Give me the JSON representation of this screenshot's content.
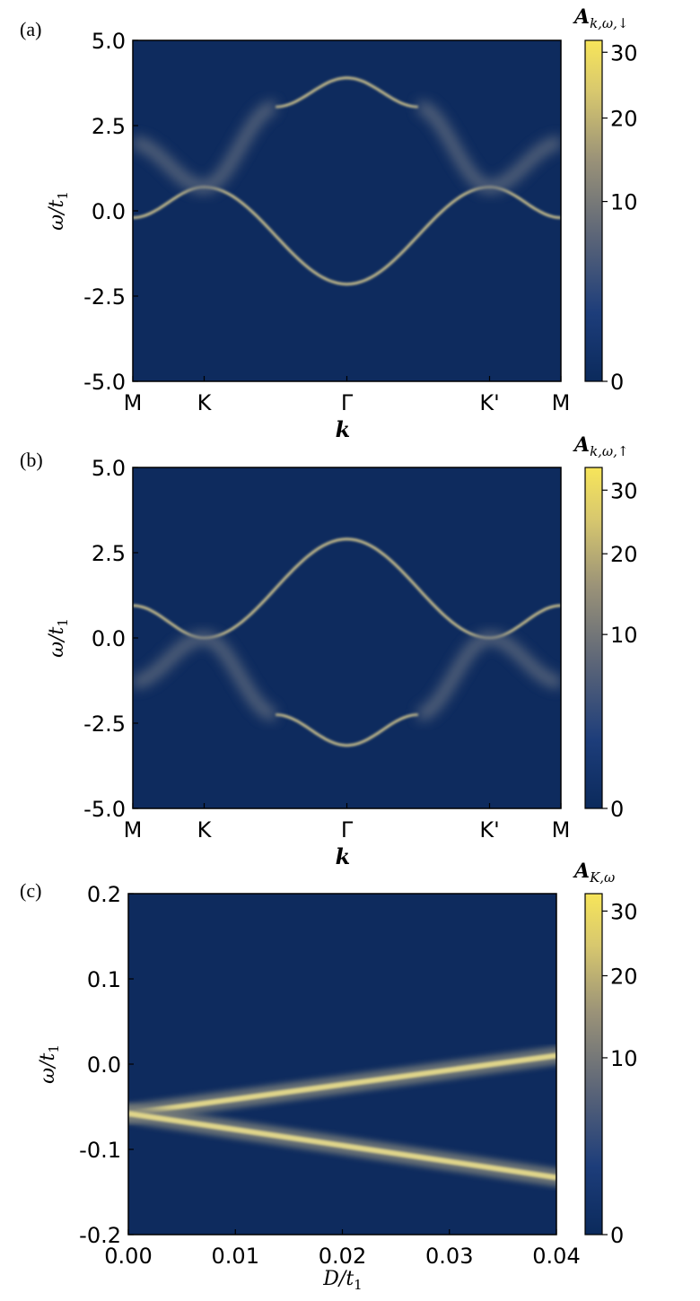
{
  "chart_data": [
    {
      "type": "heatmap",
      "panel_label": "(a)",
      "xlabel": "k",
      "ylabel_main": "ω/t",
      "ylabel_sub": "1",
      "colorbar_label_main": "A",
      "colorbar_label_sub": "k,ω,↓",
      "x_ticks": [
        "M",
        "K",
        "Γ",
        "K'",
        "M"
      ],
      "y_ticks": [
        "5.0",
        "2.5",
        "0.0",
        "-2.5",
        "-5.0"
      ],
      "ylim": [
        -5.0,
        5.0
      ],
      "colorbar_ticks": [
        "30",
        "20",
        "10",
        "0"
      ],
      "colorbar_range": [
        0,
        32
      ],
      "colormap": [
        "#0b2a5c",
        "#1d3d7a",
        "#5a6478",
        "#9a9278",
        "#d8c86e",
        "#f7e55a"
      ],
      "bands": [
        {
          "points": [
            [
              0,
              -0.2
            ],
            [
              0.5,
              0.7
            ],
            [
              1.5,
              -2.15
            ],
            [
              2.5,
              0.7
            ],
            [
              3,
              -0.2
            ]
          ],
          "shape": "cos"
        },
        {
          "points": [
            [
              1.0,
              3.05
            ],
            [
              1.5,
              3.9
            ],
            [
              2.0,
              3.05
            ]
          ],
          "shape": "cos"
        },
        {
          "points": [
            [
              0,
              2.0
            ],
            [
              0.5,
              0.7
            ],
            [
              1.0,
              3.05
            ]
          ],
          "shape": "blur"
        },
        {
          "points": [
            [
              2.0,
              3.05
            ],
            [
              2.5,
              0.7
            ],
            [
              3,
              2.0
            ]
          ],
          "shape": "blur"
        }
      ]
    },
    {
      "type": "heatmap",
      "panel_label": "(b)",
      "xlabel": "k",
      "ylabel_main": "ω/t",
      "ylabel_sub": "1",
      "colorbar_label_main": "A",
      "colorbar_label_sub": "k,ω,↑",
      "x_ticks": [
        "M",
        "K",
        "Γ",
        "K'",
        "M"
      ],
      "y_ticks": [
        "5.0",
        "2.5",
        "0.0",
        "-2.5",
        "-5.0"
      ],
      "ylim": [
        -5.0,
        5.0
      ],
      "colorbar_ticks": [
        "30",
        "20",
        "10",
        "0"
      ],
      "colorbar_range": [
        0,
        34
      ],
      "colormap": [
        "#0b2a5c",
        "#1d3d7a",
        "#5a6478",
        "#9a9278",
        "#d8c86e",
        "#f7e55a"
      ],
      "bands": [
        {
          "points": [
            [
              0,
              0.95
            ],
            [
              0.5,
              0.0
            ],
            [
              1.5,
              2.9
            ],
            [
              2.5,
              0.0
            ],
            [
              3,
              0.95
            ]
          ],
          "shape": "cos"
        },
        {
          "points": [
            [
              1.0,
              -2.25
            ],
            [
              1.5,
              -3.15
            ],
            [
              2.0,
              -2.25
            ]
          ],
          "shape": "cos"
        },
        {
          "points": [
            [
              0,
              -1.3
            ],
            [
              0.5,
              0.0
            ],
            [
              1.0,
              -2.25
            ]
          ],
          "shape": "blur"
        },
        {
          "points": [
            [
              2.0,
              -2.25
            ],
            [
              2.5,
              0.0
            ],
            [
              3,
              -1.3
            ]
          ],
          "shape": "blur"
        }
      ]
    },
    {
      "type": "heatmap",
      "panel_label": "(c)",
      "xlabel_main": "D/t",
      "xlabel_sub": "1",
      "ylabel_main": "ω/t",
      "ylabel_sub": "1",
      "colorbar_label_main": "A",
      "colorbar_label_sub": "K,ω",
      "x_ticks": [
        "0.00",
        "0.01",
        "0.02",
        "0.03",
        "0.04"
      ],
      "xlim": [
        0.0,
        0.04
      ],
      "y_ticks": [
        "0.2",
        "0.1",
        "0.0",
        "-0.1",
        "-0.2"
      ],
      "ylim": [
        -0.2,
        0.2
      ],
      "colorbar_ticks": [
        "30",
        "20",
        "10",
        "0"
      ],
      "colorbar_range": [
        0,
        33
      ],
      "colormap": [
        "#0b2a5c",
        "#1d3d7a",
        "#5a6478",
        "#9a9278",
        "#d8c86e",
        "#f7e55a"
      ],
      "bands": [
        {
          "points": [
            [
              0.0,
              -0.058
            ],
            [
              0.04,
              0.01
            ]
          ],
          "shape": "line"
        },
        {
          "points": [
            [
              0.0,
              -0.058
            ],
            [
              0.04,
              -0.133
            ]
          ],
          "shape": "line"
        }
      ]
    }
  ]
}
